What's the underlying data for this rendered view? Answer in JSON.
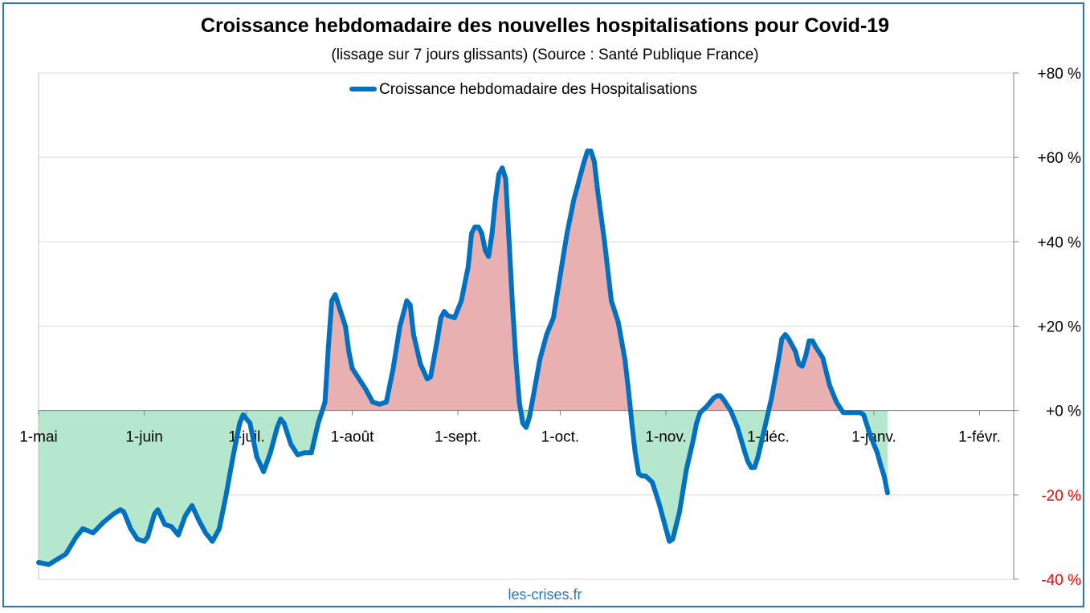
{
  "title": "Croissance hebdomadaire des nouvelles hospitalisations pour Covid-19",
  "subtitle": "(lissage sur 7 jours glissants) (Source : Santé Publique France)",
  "source": "les-crises.fr",
  "chart_data": {
    "type": "area",
    "title": "Croissance hebdomadaire des nouvelles hospitalisations pour Covid-19",
    "subtitle": "(lissage sur 7 jours glissants) (Source : Santé Publique France)",
    "series": [
      {
        "name": "Croissance hebdomadaire des Hospitalisations",
        "color": "#0070c0",
        "points": [
          [
            0,
            -36
          ],
          [
            3,
            -36.5
          ],
          [
            8,
            -34
          ],
          [
            11,
            -30
          ],
          [
            13,
            -28
          ],
          [
            16,
            -29
          ],
          [
            19,
            -26.5
          ],
          [
            22,
            -24.5
          ],
          [
            24,
            -23.5
          ],
          [
            25,
            -24
          ],
          [
            27,
            -28
          ],
          [
            29,
            -30.5
          ],
          [
            31,
            -31
          ],
          [
            32,
            -30
          ],
          [
            34,
            -24.5
          ],
          [
            35,
            -23.5
          ],
          [
            37,
            -27
          ],
          [
            39,
            -27.5
          ],
          [
            41,
            -29.5
          ],
          [
            43,
            -25
          ],
          [
            45,
            -22.5
          ],
          [
            47,
            -26
          ],
          [
            49,
            -29
          ],
          [
            51,
            -31
          ],
          [
            53,
            -28
          ],
          [
            55,
            -20
          ],
          [
            57,
            -11
          ],
          [
            59,
            -3
          ],
          [
            60,
            -1
          ],
          [
            62,
            -3
          ],
          [
            64,
            -11
          ],
          [
            66,
            -14.5
          ],
          [
            68,
            -10
          ],
          [
            70,
            -4
          ],
          [
            71,
            -2
          ],
          [
            72,
            -3
          ],
          [
            74,
            -8
          ],
          [
            76,
            -10.5
          ],
          [
            78,
            -10
          ],
          [
            80,
            -10
          ],
          [
            82,
            -3
          ],
          [
            84,
            2
          ],
          [
            85,
            15
          ],
          [
            86,
            26
          ],
          [
            87,
            27.5
          ],
          [
            88,
            25
          ],
          [
            90,
            20
          ],
          [
            91,
            14
          ],
          [
            92,
            10
          ],
          [
            94,
            7.5
          ],
          [
            96,
            5
          ],
          [
            98,
            2
          ],
          [
            100,
            1.5
          ],
          [
            102,
            2
          ],
          [
            104,
            10
          ],
          [
            106,
            20
          ],
          [
            108,
            26
          ],
          [
            109,
            25
          ],
          [
            110,
            18
          ],
          [
            112,
            11
          ],
          [
            114,
            7.5
          ],
          [
            115,
            8
          ],
          [
            117,
            17
          ],
          [
            118,
            22
          ],
          [
            119,
            23.5
          ],
          [
            120,
            22.5
          ],
          [
            122,
            22
          ],
          [
            124,
            26
          ],
          [
            126,
            34
          ],
          [
            127,
            42
          ],
          [
            128,
            43.5
          ],
          [
            129,
            43.5
          ],
          [
            130,
            42
          ],
          [
            131,
            38
          ],
          [
            132,
            36.5
          ],
          [
            133,
            42
          ],
          [
            134,
            50
          ],
          [
            135,
            56
          ],
          [
            136,
            57.5
          ],
          [
            137,
            55
          ],
          [
            138,
            40
          ],
          [
            139,
            25
          ],
          [
            140,
            12
          ],
          [
            141,
            2
          ],
          [
            142,
            -3
          ],
          [
            143,
            -4
          ],
          [
            144,
            -1.5
          ],
          [
            145,
            3
          ],
          [
            147,
            12
          ],
          [
            149,
            18
          ],
          [
            151,
            22
          ],
          [
            153,
            32
          ],
          [
            155,
            42
          ],
          [
            157,
            50
          ],
          [
            158,
            53
          ],
          [
            159,
            56
          ],
          [
            160,
            59
          ],
          [
            161,
            61.5
          ],
          [
            162,
            61.5
          ],
          [
            163,
            59
          ],
          [
            164,
            52
          ],
          [
            166,
            40
          ],
          [
            168,
            26
          ],
          [
            170,
            21
          ],
          [
            172,
            12
          ],
          [
            173,
            5
          ],
          [
            174,
            -3
          ],
          [
            175,
            -10
          ],
          [
            176,
            -15
          ],
          [
            177,
            -15.5
          ],
          [
            178,
            -15.5
          ],
          [
            180,
            -17
          ],
          [
            182,
            -22
          ],
          [
            184,
            -28
          ],
          [
            185,
            -31
          ],
          [
            186,
            -30.5
          ],
          [
            188,
            -24
          ],
          [
            190,
            -14
          ],
          [
            192,
            -7
          ],
          [
            193,
            -3
          ],
          [
            194,
            -0.5
          ],
          [
            196,
            1
          ],
          [
            198,
            3
          ],
          [
            199,
            3.5
          ],
          [
            200,
            3.5
          ],
          [
            201,
            2.5
          ],
          [
            203,
            0
          ],
          [
            205,
            -4
          ],
          [
            207,
            -9.5
          ],
          [
            208,
            -12
          ],
          [
            209,
            -13.5
          ],
          [
            210,
            -13.5
          ],
          [
            211,
            -11
          ],
          [
            213,
            -4
          ],
          [
            215,
            3
          ],
          [
            217,
            12
          ],
          [
            218,
            17
          ],
          [
            219,
            18
          ],
          [
            220,
            17
          ],
          [
            222,
            14
          ],
          [
            223,
            11
          ],
          [
            224,
            10.5
          ],
          [
            225,
            13
          ],
          [
            226,
            16.5
          ],
          [
            227,
            16.5
          ],
          [
            228,
            15
          ],
          [
            230,
            12.5
          ],
          [
            232,
            6
          ],
          [
            234,
            2
          ],
          [
            236,
            -0.5
          ],
          [
            238,
            -0.5
          ],
          [
            240,
            -0.5
          ],
          [
            241,
            -0.5
          ],
          [
            242,
            -1
          ],
          [
            244,
            -6
          ],
          [
            246,
            -10
          ],
          [
            247,
            -13
          ],
          [
            248,
            -15.5
          ],
          [
            249,
            -19.5
          ]
        ]
      }
    ],
    "x_tick_labels": [
      {
        "day": 0,
        "label": "1-mai"
      },
      {
        "day": 31,
        "label": "1-juin"
      },
      {
        "day": 61,
        "label": "1-juil."
      },
      {
        "day": 92,
        "label": "1-août"
      },
      {
        "day": 123,
        "label": "1-sept."
      },
      {
        "day": 153,
        "label": "1-oct."
      },
      {
        "day": 184,
        "label": "1-nov."
      },
      {
        "day": 214,
        "label": "1-déc."
      },
      {
        "day": 245,
        "label": "1-janv."
      },
      {
        "day": 276,
        "label": "1-févr."
      }
    ],
    "y_ticks": [
      {
        "value": 80,
        "label": "+80 %"
      },
      {
        "value": 60,
        "label": "+60 %"
      },
      {
        "value": 40,
        "label": "+40 %"
      },
      {
        "value": 20,
        "label": "+20 %"
      },
      {
        "value": 0,
        "label": "+0 %"
      },
      {
        "value": -20,
        "label": "-20 %"
      },
      {
        "value": -40,
        "label": "-40 %"
      }
    ],
    "ylim": [
      -40,
      80
    ],
    "xlim": [
      0,
      286
    ],
    "grid": true,
    "legend_position": "top-center",
    "colors": {
      "line": "#0070c0",
      "fill_positive": "#e8b0b0",
      "fill_negative": "#b4e7cb",
      "grid": "#d9d9d9",
      "negative_tick_label": "#ff0000"
    }
  }
}
